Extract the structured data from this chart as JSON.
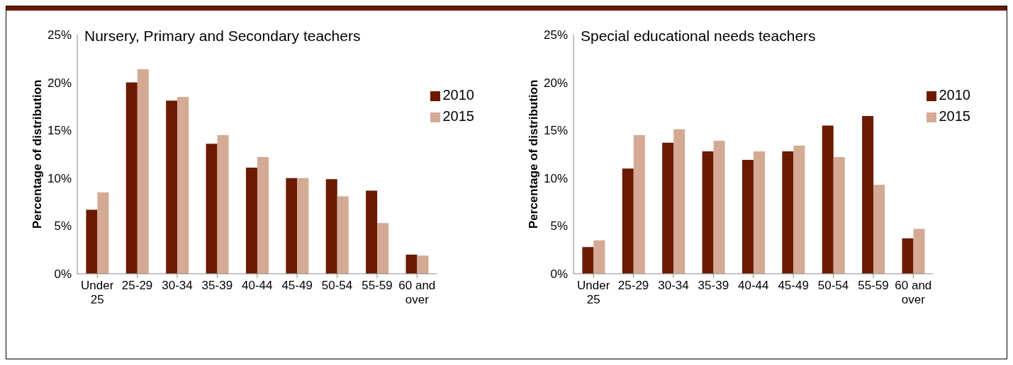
{
  "chart_data": [
    {
      "type": "bar",
      "title": "Nursery, Primary and Secondary teachers",
      "ylabel": "Percentage of distribution",
      "categories": [
        "Under 25",
        "25-29",
        "30-34",
        "35-39",
        "40-44",
        "45-49",
        "50-54",
        "55-59",
        "60 and over"
      ],
      "series": [
        {
          "name": "2010",
          "color": "#6b1a00",
          "values": [
            6.7,
            20.0,
            18.1,
            13.6,
            11.1,
            10.0,
            9.9,
            8.7,
            2.0
          ]
        },
        {
          "name": "2015",
          "color": "#d4aa94",
          "values": [
            8.5,
            21.4,
            18.5,
            14.5,
            12.2,
            10.0,
            8.1,
            5.3,
            1.9
          ]
        }
      ],
      "ylim": [
        0,
        25
      ],
      "yticks": [
        {
          "value": 0,
          "label": "0%"
        },
        {
          "value": 5,
          "label": "5%"
        },
        {
          "value": 10,
          "label": "10%"
        },
        {
          "value": 15,
          "label": "15%"
        },
        {
          "value": 20,
          "label": "20%"
        },
        {
          "value": 25,
          "label": "25%"
        }
      ],
      "legend": "top right"
    },
    {
      "type": "bar",
      "title": "Special educational needs teachers",
      "ylabel": "Percentage of distribution",
      "categories": [
        "Under 25",
        "25-29",
        "30-34",
        "35-39",
        "40-44",
        "45-49",
        "50-54",
        "55-59",
        "60 and over"
      ],
      "series": [
        {
          "name": "2010",
          "color": "#6b1a00",
          "values": [
            2.8,
            11.0,
            13.7,
            12.8,
            11.9,
            12.8,
            15.5,
            16.5,
            3.7
          ]
        },
        {
          "name": "2015",
          "color": "#d4aa94",
          "values": [
            3.5,
            14.5,
            15.1,
            13.9,
            12.8,
            13.4,
            12.2,
            9.3,
            4.7
          ]
        }
      ],
      "ylim": [
        0,
        25
      ],
      "yticks": [
        {
          "value": 0,
          "label": "0%"
        },
        {
          "value": 5,
          "label": "5%"
        },
        {
          "value": 10,
          "label": "10%"
        },
        {
          "value": 15,
          "label": "15%"
        },
        {
          "value": 20,
          "label": "20%"
        },
        {
          "value": 25,
          "label": "25%"
        }
      ],
      "legend": "top right"
    }
  ]
}
